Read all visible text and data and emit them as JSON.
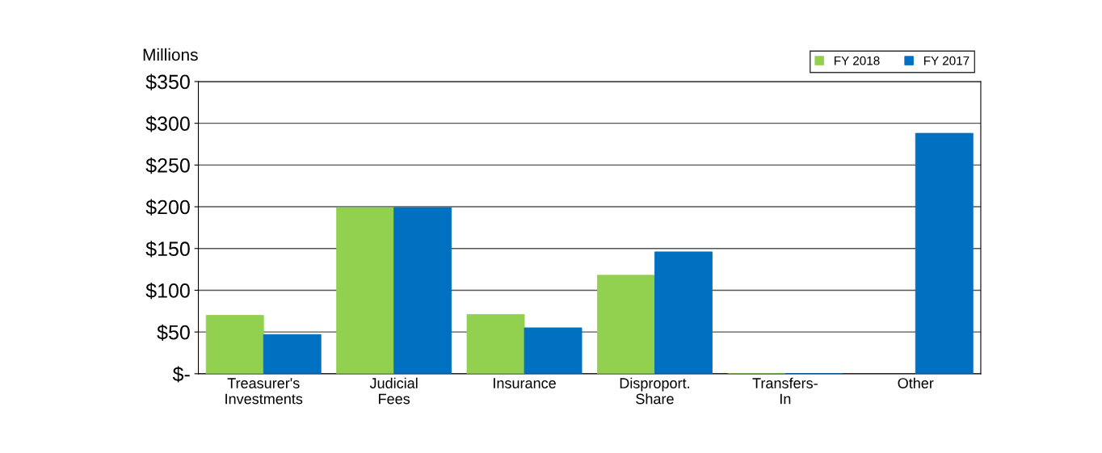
{
  "chart_data": {
    "type": "bar",
    "ylabel": "Millions",
    "categories": [
      "Treasurer's\nInvestments",
      "Judicial\nFees",
      "Insurance",
      "Disproport.\nShare",
      "Transfers-\nIn",
      "Other"
    ],
    "series": [
      {
        "name": "FY 2018",
        "color": "#92d050",
        "values": [
          70,
          199,
          71,
          118,
          0,
          null
        ]
      },
      {
        "name": "FY 2017",
        "color": "#0070c0",
        "values": [
          47,
          199,
          55,
          146,
          0,
          288
        ]
      }
    ],
    "ylim": [
      0,
      350
    ],
    "yticks": [
      {
        "value": 0,
        "label": "$-"
      },
      {
        "value": 50,
        "label": "$50"
      },
      {
        "value": 100,
        "label": "$100"
      },
      {
        "value": 150,
        "label": "$150"
      },
      {
        "value": 200,
        "label": "$200"
      },
      {
        "value": 250,
        "label": "$250"
      },
      {
        "value": 300,
        "label": "$300"
      },
      {
        "value": 350,
        "label": "$350"
      }
    ],
    "grid": "y",
    "legend": "top right"
  }
}
